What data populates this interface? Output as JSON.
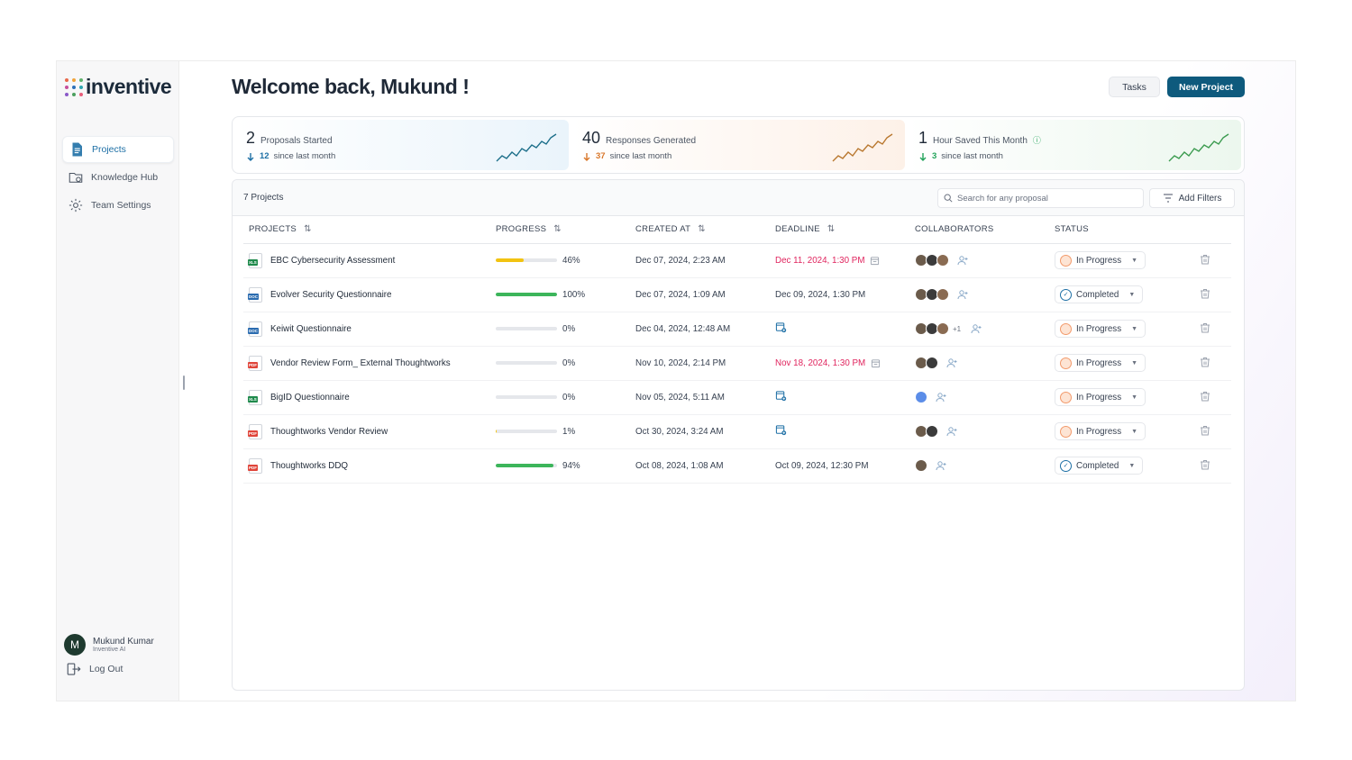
{
  "brand": {
    "name": "inventive"
  },
  "sidebar": {
    "items": [
      {
        "label": "Projects",
        "icon": "document-icon",
        "active": true
      },
      {
        "label": "Knowledge Hub",
        "icon": "folder-icon",
        "active": false
      },
      {
        "label": "Team Settings",
        "icon": "gear-icon",
        "active": false
      }
    ],
    "user": {
      "initial": "M",
      "name": "Mukund Kumar",
      "org": "Inventive AI"
    },
    "logout_label": "Log Out"
  },
  "header": {
    "welcome": "Welcome back, Mukund !",
    "tasks_label": "Tasks",
    "new_project_label": "New Project"
  },
  "stats": [
    {
      "value": "2",
      "label": "Proposals Started",
      "delta": "12",
      "delta_text": "since last month",
      "color": "#1d6fa5"
    },
    {
      "value": "40",
      "label": "Responses Generated",
      "delta": "37",
      "delta_text": "since last month",
      "color": "#d9772b"
    },
    {
      "value": "1",
      "label": "Hour Saved This Month",
      "delta": "3",
      "delta_text": "since last month",
      "color": "#22a35a"
    }
  ],
  "projects_panel": {
    "count": "7 Projects",
    "search_placeholder": "Search for any proposal",
    "filters_label": "Add Filters",
    "columns": [
      "PROJECTS",
      "PROGRESS",
      "CREATED AT",
      "DEADLINE",
      "COLLABORATORS",
      "STATUS"
    ],
    "rows": [
      {
        "file_type": "XLS",
        "name": "EBC Cybersecurity Assessment",
        "progress": 46,
        "progress_label": "46%",
        "created": "Dec 07, 2024, 2:23 AM",
        "deadline": "Dec 11, 2024, 1:30 PM",
        "overdue": true,
        "collaborators": 3,
        "more": "",
        "status": "In Progress"
      },
      {
        "file_type": "DOC",
        "name": "Evolver Security Questionnaire",
        "progress": 100,
        "progress_label": "100%",
        "created": "Dec 07, 2024, 1:09 AM",
        "deadline": "Dec 09, 2024, 1:30 PM",
        "overdue": false,
        "collaborators": 3,
        "more": "",
        "status": "Completed"
      },
      {
        "file_type": "DOC",
        "name": "Keiwit Questionnaire",
        "progress": 0,
        "progress_label": "0%",
        "created": "Dec 04, 2024, 12:48 AM",
        "deadline": "",
        "overdue": false,
        "collaborators": 3,
        "more": "+1",
        "status": "In Progress"
      },
      {
        "file_type": "PDF",
        "name": "Vendor Review Form_ External Thoughtworks",
        "progress": 0,
        "progress_label": "0%",
        "created": "Nov 10, 2024, 2:14 PM",
        "deadline": "Nov 18, 2024, 1:30 PM",
        "overdue": true,
        "collaborators": 2,
        "more": "",
        "status": "In Progress"
      },
      {
        "file_type": "XLS",
        "name": "BigID Questionnaire",
        "progress": 0,
        "progress_label": "0%",
        "created": "Nov 05, 2024, 5:11 AM",
        "deadline": "",
        "overdue": false,
        "collaborators": 1,
        "more": "",
        "status": "In Progress"
      },
      {
        "file_type": "PDF",
        "name": "Thoughtworks Vendor Review",
        "progress": 1,
        "progress_label": "1%",
        "created": "Oct 30, 2024, 3:24 AM",
        "deadline": "",
        "overdue": false,
        "collaborators": 2,
        "more": "",
        "status": "In Progress"
      },
      {
        "file_type": "PDF",
        "name": "Thoughtworks DDQ",
        "progress": 94,
        "progress_label": "94%",
        "created": "Oct 08, 2024, 1:08 AM",
        "deadline": "Oct 09, 2024, 12:30 PM",
        "overdue": false,
        "collaborators": 1,
        "more": "",
        "status": "Completed"
      }
    ]
  },
  "colors": {
    "accent": "#0e5a7d",
    "overdue": "#e0245e",
    "progress_low": "#f2c311",
    "progress_high": "#3cb55b",
    "file_xls": "#1f8a4c",
    "file_doc": "#2b6cb0",
    "file_pdf": "#e0453a"
  }
}
